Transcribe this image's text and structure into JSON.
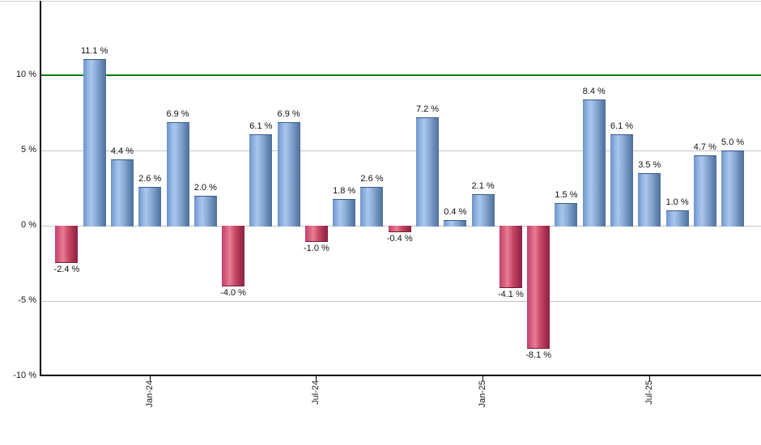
{
  "chart_data": {
    "type": "bar",
    "title": "",
    "unit": "%",
    "ylim": [
      -10,
      15
    ],
    "grid": true,
    "legend_position": "none",
    "values": [
      -2.4,
      11.1,
      4.4,
      2.6,
      6.9,
      2.0,
      -4.0,
      6.1,
      6.9,
      -1.0,
      1.8,
      2.6,
      -0.4,
      7.2,
      0.4,
      2.1,
      -4.1,
      -8.1,
      1.5,
      8.4,
      6.1,
      3.5,
      1.0,
      4.7,
      5.0
    ],
    "bar_labels": [
      "-2.4 %",
      "11.1 %",
      "4.4 %",
      "2.6 %",
      "6.9 %",
      "2.0 %",
      "-4.0 %",
      "6.1 %",
      "6.9 %",
      "-1.0 %",
      "1.8 %",
      "2.6 %",
      "-0.4 %",
      "7.2 %",
      "0.4 %",
      "2.1 %",
      "-4.1 %",
      "-8.1 %",
      "1.5 %",
      "8.4 %",
      "6.1 %",
      "3.5 %",
      "1.0 %",
      "4.7 %",
      "5.0 %"
    ],
    "x_ticks": [
      {
        "label": "Jan-24",
        "bar_index": 3
      },
      {
        "label": "Jul-24",
        "bar_index": 9
      },
      {
        "label": "Jan-25",
        "bar_index": 15
      },
      {
        "label": "Jul-25",
        "bar_index": 21
      }
    ],
    "y_ticks": [
      {
        "label": "10 %",
        "value": 10
      },
      {
        "label": "5 %",
        "value": 5
      },
      {
        "label": "0 %",
        "value": 0
      },
      {
        "label": "-5 %",
        "value": -5
      },
      {
        "label": "-10 %",
        "value": -10
      }
    ],
    "reference_line": {
      "value": 10,
      "color": "#0e7b0e"
    },
    "colors": {
      "positive_bar": "#8fb2e0",
      "negative_bar": "#c74663",
      "grid": "#c4c4c4",
      "axis": "#000000",
      "reference_line": "#0e7b0e",
      "background": "#ffffff",
      "label_text": "#111111"
    }
  }
}
